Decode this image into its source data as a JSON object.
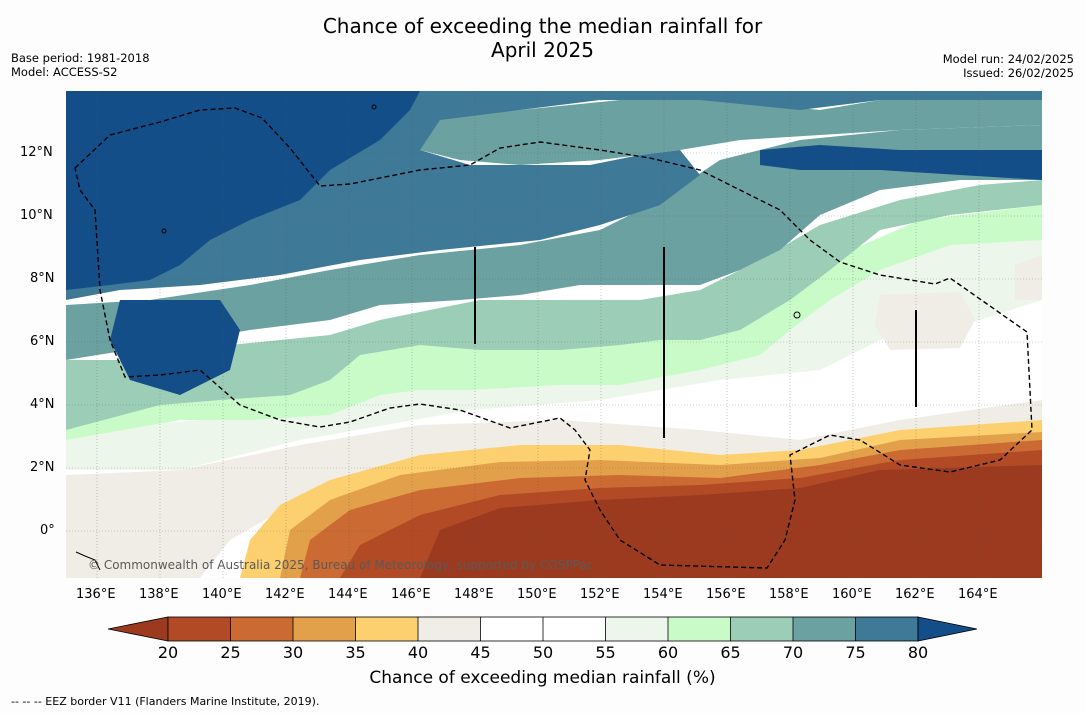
{
  "header": {
    "title_line1": "Chance of exceeding the median rainfall for",
    "title_line2": "April 2025",
    "base_period": "Base period: 1981-2018",
    "model": "Model: ACCESS-S2",
    "model_run": "Model run: 24/02/2025",
    "issued": "Issued: 26/02/2025"
  },
  "map": {
    "lon_ticks": [
      "136°E",
      "138°E",
      "140°E",
      "142°E",
      "144°E",
      "146°E",
      "148°E",
      "150°E",
      "152°E",
      "154°E",
      "156°E",
      "158°E",
      "160°E",
      "162°E",
      "164°E"
    ],
    "lat_ticks": [
      "12°N",
      "10°N",
      "8°N",
      "6°N",
      "4°N",
      "2°N",
      "0°"
    ],
    "lon_range": [
      135,
      166
    ],
    "lat_range": [
      -1.5,
      14
    ],
    "copyright": "© Commonwealth of Australia 2025, Bureau of Meteorology, supported by COSPPac",
    "dominant_regions": [
      {
        "area": "north-west",
        "category": "75-80 and >80"
      },
      {
        "area": "north-central",
        "category": "70-75"
      },
      {
        "area": "central band 4-7°N",
        "category": "55-65"
      },
      {
        "area": "south of 2°N, east of 146°E",
        "category": "<20 to 30"
      }
    ]
  },
  "colorbar": {
    "title": "Chance of exceeding median rainfall (%)",
    "labels": [
      "20",
      "25",
      "30",
      "35",
      "40",
      "45",
      "50",
      "55",
      "60",
      "65",
      "70",
      "75",
      "80"
    ],
    "colors": [
      "#9c3a1f",
      "#b24a25",
      "#cb6a33",
      "#e3a04b",
      "#fdd06f",
      "#efede6",
      "#ffffff",
      "#ffffff",
      "#ecf6ea",
      "#c9fbc9",
      "#9ccdb7",
      "#6ca1a1",
      "#3f7998",
      "#144e89"
    ]
  },
  "footnote": "-- -- -- EEZ border V11 (Flanders Marine Institute, 2019)."
}
